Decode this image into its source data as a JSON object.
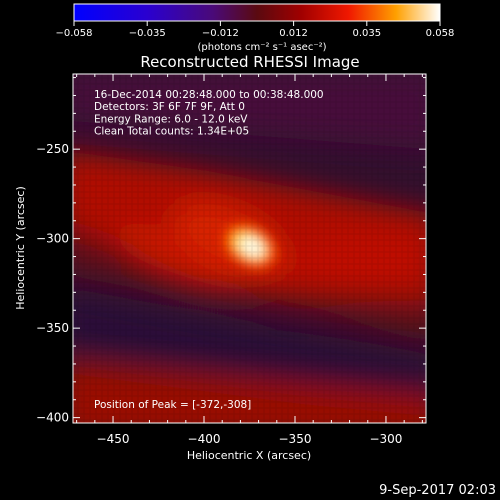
{
  "colorbar": {
    "tick_labels": [
      "-0.058",
      "-0.035",
      "-0.012",
      "0.012",
      "0.035",
      "0.058"
    ],
    "unit_label": "(photons cm⁻² s⁻¹ asec⁻²)",
    "range": [
      -0.058,
      0.058
    ]
  },
  "plot": {
    "title": "Reconstructed RHESSI Image",
    "info_lines": [
      "16-Dec-2014 00:28:48.000 to 00:38:48.000",
      "Detectors: 3F 6F 7F 9F, Att 0",
      "Energy Range: 6.0 - 12.0 keV",
      "Clean     Total counts: 1.34E+05"
    ],
    "peak_label": "Position of Peak = [-372,-308]",
    "footer_date": "9-Sep-2017 02:03"
  },
  "chart_data": {
    "type": "heatmap",
    "title": "Reconstructed RHESSI Image",
    "xlabel": "Heliocentric X (arcsec)",
    "ylabel": "Heliocentric Y (arcsec)",
    "xlim": [
      -472,
      -278
    ],
    "ylim": [
      -403,
      -208
    ],
    "x_ticks": [
      -450,
      -400,
      -350,
      -300
    ],
    "y_ticks": [
      -250,
      -300,
      -350,
      -400
    ],
    "x_tick_labels": [
      "−450",
      "−400",
      "−350",
      "−300"
    ],
    "y_tick_labels": [
      "−250",
      "−300",
      "−350",
      "−400"
    ],
    "peak": {
      "x": -372,
      "y": -308
    },
    "colormap": "hot (blue-purple-red-yellow-white)",
    "value_range": [
      -0.058,
      0.058
    ]
  },
  "colors": {
    "background": "#000000",
    "text": "#ffffff"
  }
}
